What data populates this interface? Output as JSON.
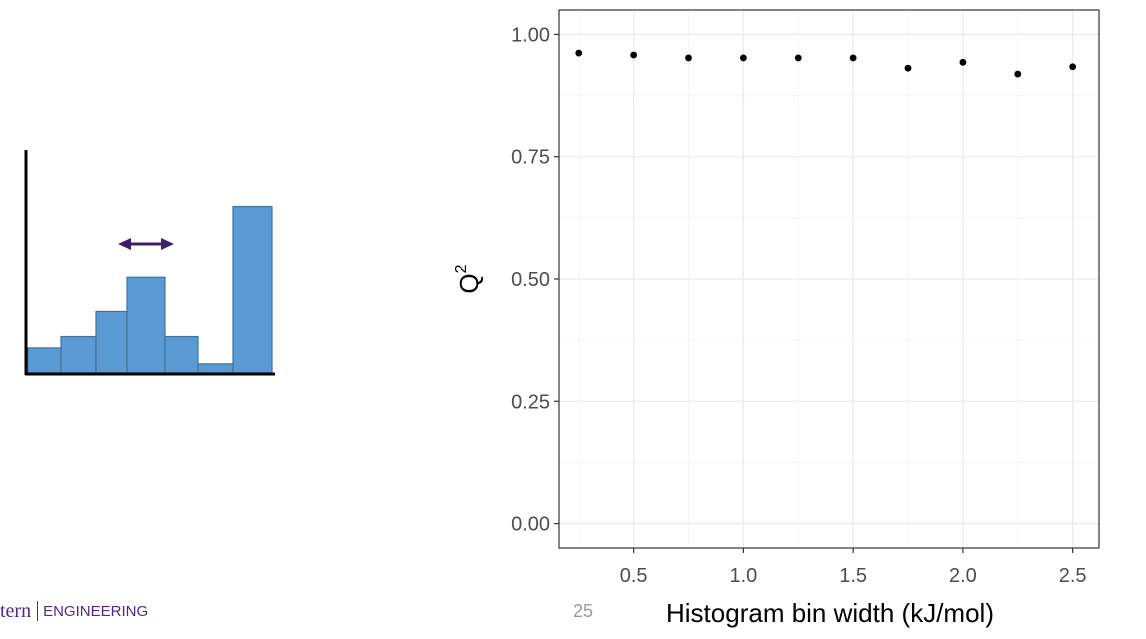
{
  "footer": {
    "logo_word": "tern",
    "logo_dept": "ENGINEERING",
    "page_number": "25"
  },
  "colors": {
    "histogram_fill": "#5b9bd5",
    "histogram_stroke": "#41719c",
    "arrow": "#3c1f6b",
    "brand_purple": "#4e2a84",
    "point": "#000000",
    "grid_major": "#ebebeb",
    "grid_minor": "#f5f5f5",
    "panel_border": "#333333",
    "tick_label": "#4d4d4d"
  },
  "histogram_illustration": {
    "bar_heights": [
      0.11,
      0.16,
      0.27,
      0.42,
      0.16,
      0.04,
      0.73
    ],
    "arrow": "double-headed horizontal arrow indicating bin width"
  },
  "chart_data": {
    "type": "scatter",
    "xlabel": "Histogram bin width (kJ/mol)",
    "ylabel": "Q",
    "ylabel_superscript": "2",
    "xlim": [
      0.16,
      2.62
    ],
    "ylim": [
      -0.05,
      1.05
    ],
    "x_ticks": [
      0.5,
      1.0,
      1.5,
      2.0,
      2.5
    ],
    "x_tick_labels": [
      "0.5",
      "1.0",
      "1.5",
      "2.0",
      "2.5"
    ],
    "y_ticks": [
      0.0,
      0.25,
      0.5,
      0.75,
      1.0
    ],
    "y_tick_labels": [
      "0.00",
      "0.25",
      "0.50",
      "0.75",
      "1.00"
    ],
    "grid": true,
    "theme": "bw",
    "points": {
      "x": [
        0.25,
        0.5,
        0.75,
        1.0,
        1.25,
        1.5,
        1.75,
        2.0,
        2.25,
        2.5
      ],
      "y": [
        0.962,
        0.958,
        0.952,
        0.952,
        0.952,
        0.952,
        0.931,
        0.943,
        0.919,
        0.934
      ]
    }
  }
}
